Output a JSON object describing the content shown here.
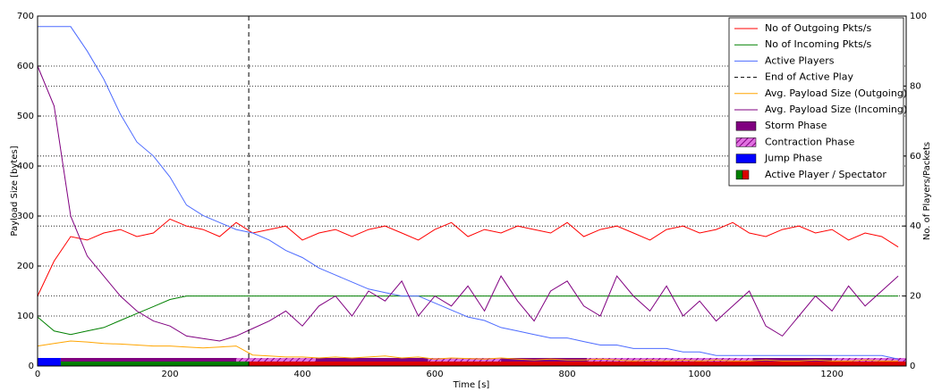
{
  "chart_data": {
    "type": "line",
    "xlabel": "Time [s]",
    "ylabel": "Payload Size [bytes]",
    "y2label": "No. of Players/Packets",
    "xlim": [
      0,
      1312
    ],
    "xticks": [
      0,
      200,
      400,
      600,
      800,
      1000,
      1200
    ],
    "ylim": [
      0,
      700
    ],
    "yticks": [
      0,
      100,
      200,
      300,
      400,
      500,
      600,
      700
    ],
    "y2lim": [
      0,
      100
    ],
    "y2ticks": [
      0,
      20,
      40,
      60,
      80,
      100
    ],
    "grid": true,
    "legend": "upper right",
    "x": [
      0,
      25,
      50,
      75,
      100,
      125,
      150,
      175,
      200,
      225,
      250,
      275,
      300,
      325,
      350,
      375,
      400,
      425,
      450,
      475,
      500,
      525,
      550,
      575,
      600,
      625,
      650,
      675,
      700,
      725,
      750,
      775,
      800,
      825,
      850,
      875,
      900,
      925,
      950,
      975,
      1000,
      1025,
      1050,
      1075,
      1100,
      1125,
      1150,
      1175,
      1200,
      1225,
      1250,
      1275,
      1300
    ],
    "series": [
      {
        "name": "No of Outgoing Pkts/s",
        "color": "#ff0000",
        "axis": "y2",
        "values": [
          20,
          30,
          37,
          36,
          38,
          39,
          37,
          38,
          42,
          40,
          39,
          37,
          41,
          38,
          39,
          40,
          36,
          38,
          39,
          37,
          39,
          40,
          38,
          36,
          39,
          41,
          37,
          39,
          38,
          40,
          39,
          38,
          41,
          37,
          39,
          40,
          38,
          36,
          39,
          40,
          38,
          39,
          41,
          38,
          37,
          39,
          40,
          38,
          39,
          36,
          38,
          37,
          34
        ]
      },
      {
        "name": "No of Incoming Pkts/s",
        "color": "#008000",
        "axis": "y2",
        "values": [
          14,
          10,
          9,
          10,
          11,
          13,
          15,
          17,
          19,
          20,
          20,
          20,
          20,
          20,
          20,
          20,
          20,
          20,
          20,
          20,
          20,
          20,
          20,
          20,
          20,
          20,
          20,
          20,
          20,
          20,
          20,
          20,
          20,
          20,
          20,
          20,
          20,
          20,
          20,
          20,
          20,
          20,
          20,
          20,
          20,
          20,
          20,
          20,
          20,
          20,
          20,
          20,
          20
        ]
      },
      {
        "name": "Active Players",
        "color": "#4d6bff",
        "axis": "y2",
        "values": [
          97,
          97,
          97,
          90,
          82,
          72,
          64,
          60,
          54,
          46,
          43,
          41,
          39,
          38,
          36,
          33,
          31,
          28,
          26,
          24,
          22,
          21,
          20,
          20,
          18,
          16,
          14,
          13,
          11,
          10,
          9,
          8,
          8,
          7,
          6,
          6,
          5,
          5,
          5,
          4,
          4,
          3,
          3,
          3,
          3,
          3,
          3,
          3,
          3,
          3,
          3,
          3,
          2
        ]
      },
      {
        "name": "Avg. Payload Size (Outgoing)",
        "color": "#ffa500",
        "values": [
          40,
          45,
          50,
          48,
          45,
          44,
          42,
          40,
          40,
          38,
          36,
          38,
          40,
          22,
          20,
          18,
          18,
          16,
          18,
          16,
          18,
          20,
          16,
          18,
          14,
          16,
          15,
          14,
          16,
          14,
          12,
          14,
          12,
          12,
          14,
          12,
          10,
          12,
          10,
          12,
          10,
          12,
          10,
          10,
          12,
          10,
          10,
          12,
          10,
          10,
          12,
          10,
          10
        ]
      },
      {
        "name": "Avg. Payload Size (Incoming)",
        "color": "#800080",
        "values": [
          600,
          520,
          300,
          220,
          180,
          140,
          110,
          90,
          80,
          60,
          55,
          50,
          60,
          75,
          90,
          110,
          80,
          120,
          140,
          100,
          150,
          130,
          170,
          100,
          140,
          120,
          160,
          110,
          180,
          130,
          90,
          150,
          170,
          120,
          100,
          180,
          140,
          110,
          160,
          100,
          130,
          90,
          120,
          150,
          80,
          60,
          100,
          140,
          110,
          160,
          120,
          150,
          180
        ]
      }
    ],
    "vline": {
      "name": "End of Active Play",
      "x": 319,
      "color": "#000000"
    },
    "phases": {
      "storm": {
        "name": "Storm Phase",
        "color": "#800080",
        "intervals": [
          [
            35,
            300
          ],
          [
            420,
            590
          ],
          [
            700,
            830
          ],
          [
            1080,
            1200
          ]
        ]
      },
      "contraction": {
        "name": "Contraction Phase",
        "color": "#e070e0",
        "intervals": [
          [
            300,
            420
          ],
          [
            590,
            700
          ],
          [
            830,
            1080
          ],
          [
            1200,
            1312
          ]
        ]
      },
      "jump": {
        "name": "Jump Phase",
        "color": "#0000ff",
        "intervals": [
          [
            0,
            35
          ]
        ]
      },
      "player": {
        "name": "Active Player / Spectator",
        "colors": [
          "#008000",
          "#dd0000"
        ],
        "intervals": [
          [
            0,
            319
          ],
          [
            319,
            1312
          ]
        ]
      }
    }
  }
}
